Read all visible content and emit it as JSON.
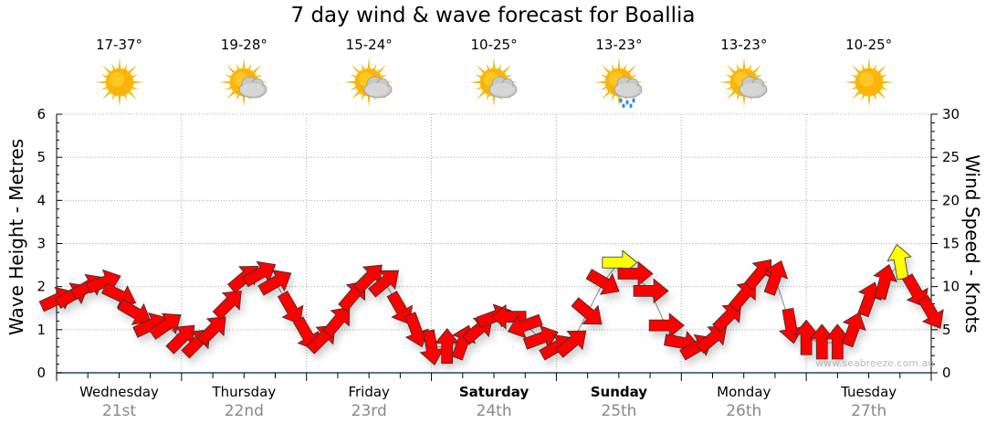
{
  "title": "7 day wind & wave forecast for Boallia",
  "days": [
    {
      "name": "Wednesday",
      "date": "21st",
      "temp": "17-37°",
      "icon": "sun-icon",
      "bold": false
    },
    {
      "name": "Thursday",
      "date": "22nd",
      "temp": "19-28°",
      "icon": "partly-cloudy-icon",
      "bold": false
    },
    {
      "name": "Friday",
      "date": "23rd",
      "temp": "15-24°",
      "icon": "partly-cloudy-icon",
      "bold": false
    },
    {
      "name": "Saturday",
      "date": "24th",
      "temp": "10-25°",
      "icon": "partly-cloudy-icon",
      "bold": true
    },
    {
      "name": "Sunday",
      "date": "25th",
      "temp": "13-23°",
      "icon": "rain-shower-icon",
      "bold": true
    },
    {
      "name": "Monday",
      "date": "26th",
      "temp": "13-23°",
      "icon": "partly-cloudy-icon",
      "bold": false
    },
    {
      "name": "Tuesday",
      "date": "27th",
      "temp": "10-25°",
      "icon": "sun-icon",
      "bold": false
    }
  ],
  "watermark": "www.seabreeze.com.au",
  "colors": {
    "arrow": "#ff0000",
    "arrow_strong": "#ffff00",
    "axis": "#1a4a6a"
  },
  "chart_data": {
    "type": "scatter",
    "title": "7 day wind & wave forecast for Boallia",
    "ylabel": "Wave Height - Metres",
    "y2label": "Wind Speed - Knots",
    "ylim": [
      0,
      6
    ],
    "y2lim": [
      0,
      30
    ],
    "yticks": [
      "0",
      "1",
      "2",
      "3",
      "4",
      "5",
      "6"
    ],
    "y2ticks": [
      "0",
      "5",
      "10",
      "15",
      "20",
      "25",
      "30"
    ],
    "x_interval_hours": 3,
    "wind_knots": [
      8.5,
      9,
      10,
      10.5,
      9,
      7,
      5.5,
      5.5,
      4,
      3.5,
      5,
      8,
      11,
      11.5,
      10.5,
      7.5,
      4.5,
      4,
      6,
      9,
      11,
      10.5,
      7.5,
      5,
      3,
      3,
      3.5,
      5,
      6.5,
      6.5,
      5.5,
      4,
      3,
      3.5,
      7,
      10.5,
      12.8,
      11.5,
      9.5,
      5.5,
      3.5,
      3,
      4,
      6.5,
      9,
      11.5,
      11,
      5.5,
      4,
      3.5,
      3.5,
      5,
      8.5,
      10.5,
      12.8,
      9.5,
      7
    ],
    "wind_heading_deg": [
      -25,
      -30,
      -30,
      -20,
      25,
      30,
      -25,
      -35,
      -45,
      -45,
      -45,
      -45,
      -40,
      -30,
      -30,
      60,
      60,
      -45,
      -50,
      -50,
      -45,
      -40,
      60,
      70,
      80,
      -90,
      -70,
      -40,
      -20,
      180,
      160,
      -20,
      -30,
      -40,
      40,
      30,
      0,
      0,
      0,
      0,
      10,
      -30,
      -40,
      -45,
      -50,
      -50,
      -70,
      80,
      -90,
      -90,
      -90,
      -70,
      -70,
      -75,
      -100,
      60,
      60
    ],
    "strong_threshold_knots": 12.5,
    "grid": true
  }
}
